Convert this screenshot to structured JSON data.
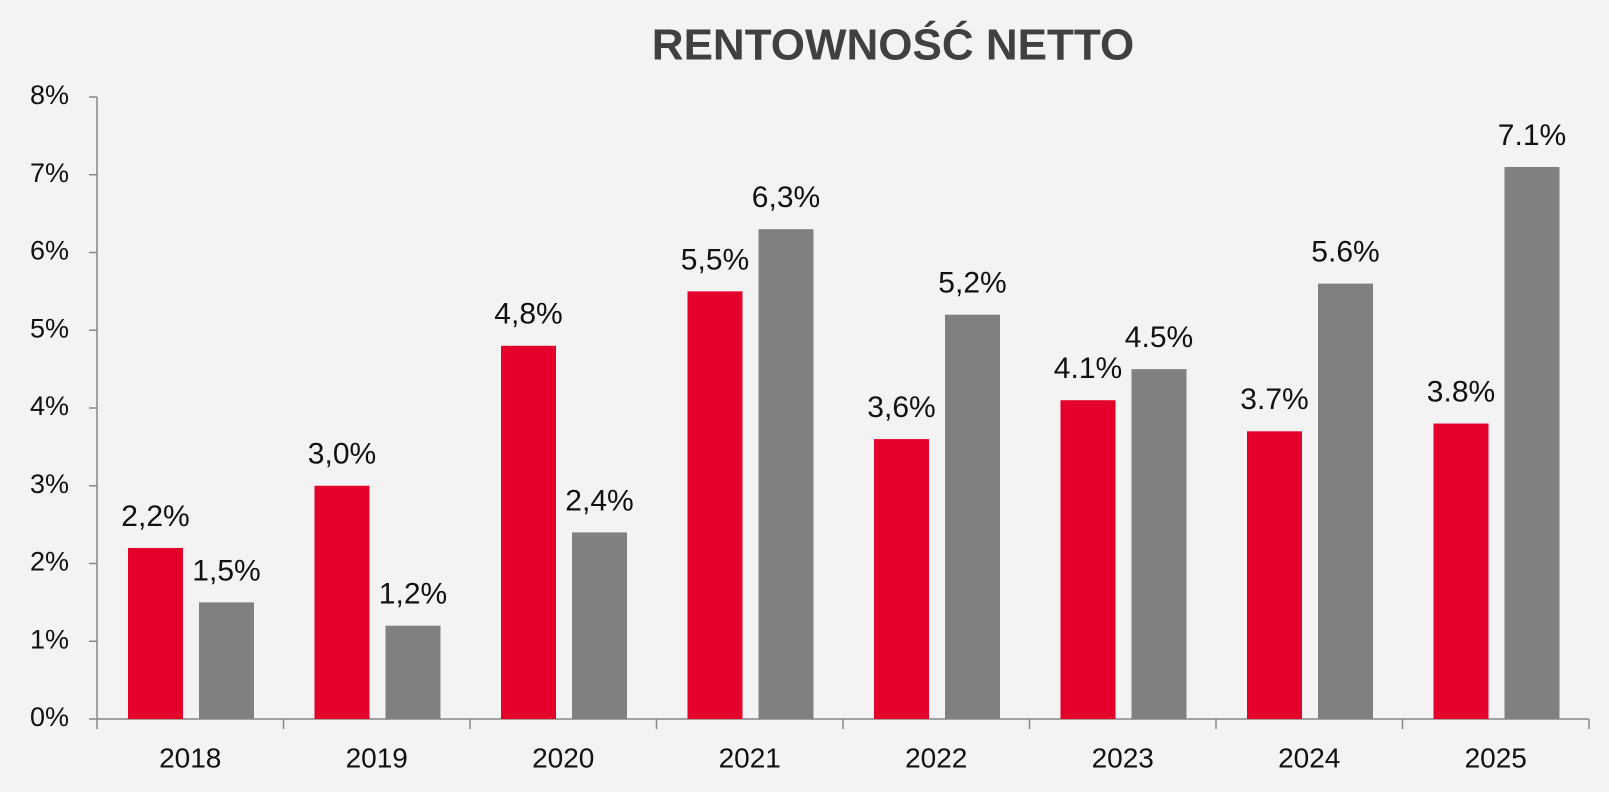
{
  "chart_data": {
    "type": "bar",
    "title": "RENTOWNOŚĆ NETTO",
    "categories": [
      "2018",
      "2019",
      "2020",
      "2021",
      "2022",
      "2023",
      "2024",
      "2025"
    ],
    "series": [
      {
        "color": "#e4002b",
        "values": [
          2.2,
          3.0,
          4.8,
          5.5,
          3.6,
          4.1,
          3.7,
          3.8
        ],
        "value_labels": [
          "2,2%",
          "3,0%",
          "4,8%",
          "5,5%",
          "3,6%",
          "4.1%",
          "3.7%",
          "3.8%"
        ]
      },
      {
        "color": "#808080",
        "values": [
          1.5,
          1.2,
          2.4,
          6.3,
          5.2,
          4.5,
          5.6,
          7.1
        ],
        "value_labels": [
          "1,5%",
          "1,2%",
          "2,4%",
          "6,3%",
          "5,2%",
          "4.5%",
          "5.6%",
          "7.1%"
        ]
      }
    ],
    "ylim": [
      0,
      8
    ],
    "yticks": [
      {
        "value": 0,
        "label": "0%"
      },
      {
        "value": 1,
        "label": "1%"
      },
      {
        "value": 2,
        "label": "2%"
      },
      {
        "value": 3,
        "label": "3%"
      },
      {
        "value": 4,
        "label": "4%"
      },
      {
        "value": 5,
        "label": "5%"
      },
      {
        "value": 6,
        "label": "6%"
      },
      {
        "value": 7,
        "label": "7%"
      },
      {
        "value": 8,
        "label": "8%"
      }
    ],
    "grid": false
  }
}
